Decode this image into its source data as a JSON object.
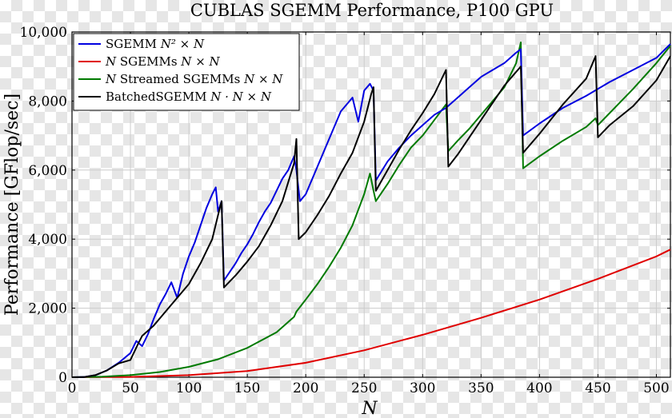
{
  "chart_data": {
    "type": "line",
    "title": "CUBLAS SGEMM Performance, P100 GPU",
    "xlabel": "N",
    "ylabel": "Performance [GFlop/sec]",
    "xlim": [
      0,
      512
    ],
    "ylim": [
      0,
      10000
    ],
    "grid": true,
    "legend_position": "top-left",
    "x_ticks": [
      0,
      50,
      100,
      150,
      200,
      250,
      300,
      350,
      400,
      450,
      500
    ],
    "y_ticks": [
      0,
      2000,
      4000,
      6000,
      8000,
      10000
    ],
    "x_tick_labels": [
      "0",
      "50",
      "100",
      "150",
      "200",
      "250",
      "300",
      "350",
      "400",
      "450",
      "500"
    ],
    "y_tick_labels": [
      "0",
      "2,000",
      "4,000",
      "6,000",
      "8,000",
      "10,000"
    ],
    "series": [
      {
        "name": "SGEMM N² × N",
        "color": "#0000e0",
        "points": [
          [
            0,
            0
          ],
          [
            10,
            5
          ],
          [
            20,
            60
          ],
          [
            30,
            200
          ],
          [
            40,
            420
          ],
          [
            50,
            700
          ],
          [
            55,
            1050
          ],
          [
            60,
            900
          ],
          [
            65,
            1250
          ],
          [
            70,
            1700
          ],
          [
            75,
            2100
          ],
          [
            80,
            2400
          ],
          [
            85,
            2750
          ],
          [
            90,
            2300
          ],
          [
            95,
            3000
          ],
          [
            100,
            3500
          ],
          [
            105,
            3900
          ],
          [
            110,
            4400
          ],
          [
            115,
            4900
          ],
          [
            120,
            5300
          ],
          [
            123,
            5500
          ],
          [
            125,
            4800
          ],
          [
            128,
            5100
          ],
          [
            130,
            2800
          ],
          [
            135,
            3050
          ],
          [
            140,
            3300
          ],
          [
            145,
            3600
          ],
          [
            150,
            3850
          ],
          [
            155,
            4150
          ],
          [
            160,
            4500
          ],
          [
            165,
            4800
          ],
          [
            170,
            5050
          ],
          [
            175,
            5400
          ],
          [
            180,
            5750
          ],
          [
            185,
            6000
          ],
          [
            190,
            6400
          ],
          [
            192,
            6000
          ],
          [
            195,
            5100
          ],
          [
            200,
            5300
          ],
          [
            210,
            6100
          ],
          [
            220,
            6900
          ],
          [
            230,
            7700
          ],
          [
            240,
            8100
          ],
          [
            245,
            7400
          ],
          [
            250,
            8300
          ],
          [
            255,
            8500
          ],
          [
            258,
            8300
          ],
          [
            260,
            5700
          ],
          [
            270,
            6250
          ],
          [
            280,
            6650
          ],
          [
            290,
            7000
          ],
          [
            300,
            7300
          ],
          [
            310,
            7600
          ],
          [
            320,
            7800
          ],
          [
            330,
            8100
          ],
          [
            340,
            8400
          ],
          [
            350,
            8700
          ],
          [
            360,
            8900
          ],
          [
            370,
            9100
          ],
          [
            380,
            9400
          ],
          [
            384,
            9500
          ],
          [
            386,
            7000
          ],
          [
            400,
            7350
          ],
          [
            420,
            7800
          ],
          [
            440,
            8150
          ],
          [
            460,
            8550
          ],
          [
            480,
            8900
          ],
          [
            500,
            9250
          ],
          [
            512,
            9650
          ]
        ]
      },
      {
        "name": "N SGEMMs N × N",
        "color": "#e00000",
        "points": [
          [
            0,
            0
          ],
          [
            50,
            10
          ],
          [
            100,
            60
          ],
          [
            150,
            180
          ],
          [
            200,
            420
          ],
          [
            250,
            780
          ],
          [
            300,
            1230
          ],
          [
            350,
            1720
          ],
          [
            400,
            2250
          ],
          [
            450,
            2850
          ],
          [
            500,
            3500
          ],
          [
            512,
            3700
          ]
        ]
      },
      {
        "name": "N Streamed SGEMMs N × N",
        "color": "#007a00",
        "points": [
          [
            0,
            0
          ],
          [
            25,
            15
          ],
          [
            50,
            60
          ],
          [
            75,
            150
          ],
          [
            100,
            300
          ],
          [
            125,
            520
          ],
          [
            150,
            850
          ],
          [
            175,
            1300
          ],
          [
            190,
            1750
          ],
          [
            192,
            1900
          ],
          [
            200,
            2250
          ],
          [
            210,
            2700
          ],
          [
            220,
            3200
          ],
          [
            230,
            3750
          ],
          [
            240,
            4400
          ],
          [
            250,
            5300
          ],
          [
            255,
            5900
          ],
          [
            258,
            5400
          ],
          [
            260,
            5100
          ],
          [
            270,
            5600
          ],
          [
            280,
            6150
          ],
          [
            290,
            6650
          ],
          [
            300,
            7000
          ],
          [
            310,
            7450
          ],
          [
            320,
            7900
          ],
          [
            322,
            6550
          ],
          [
            330,
            6850
          ],
          [
            340,
            7200
          ],
          [
            350,
            7600
          ],
          [
            360,
            8000
          ],
          [
            370,
            8400
          ],
          [
            380,
            9100
          ],
          [
            384,
            9700
          ],
          [
            386,
            6050
          ],
          [
            400,
            6400
          ],
          [
            420,
            6850
          ],
          [
            440,
            7250
          ],
          [
            448,
            7500
          ],
          [
            450,
            7300
          ],
          [
            460,
            7650
          ],
          [
            480,
            8350
          ],
          [
            500,
            9100
          ],
          [
            512,
            9600
          ]
        ]
      },
      {
        "name": "BatchedSGEMM N · N × N",
        "color": "#000000",
        "points": [
          [
            0,
            0
          ],
          [
            10,
            5
          ],
          [
            20,
            60
          ],
          [
            30,
            200
          ],
          [
            40,
            400
          ],
          [
            50,
            500
          ],
          [
            57,
            1000
          ],
          [
            60,
            1200
          ],
          [
            70,
            1500
          ],
          [
            80,
            1900
          ],
          [
            90,
            2300
          ],
          [
            100,
            2700
          ],
          [
            110,
            3300
          ],
          [
            120,
            4000
          ],
          [
            125,
            4700
          ],
          [
            128,
            5100
          ],
          [
            130,
            2600
          ],
          [
            140,
            2950
          ],
          [
            150,
            3350
          ],
          [
            160,
            3800
          ],
          [
            170,
            4400
          ],
          [
            180,
            5100
          ],
          [
            190,
            6200
          ],
          [
            192,
            6900
          ],
          [
            194,
            4000
          ],
          [
            200,
            4200
          ],
          [
            210,
            4700
          ],
          [
            220,
            5250
          ],
          [
            230,
            5900
          ],
          [
            240,
            6500
          ],
          [
            250,
            7400
          ],
          [
            256,
            8200
          ],
          [
            258,
            8400
          ],
          [
            260,
            5400
          ],
          [
            270,
            6000
          ],
          [
            280,
            6600
          ],
          [
            290,
            7150
          ],
          [
            300,
            7650
          ],
          [
            310,
            8200
          ],
          [
            320,
            8900
          ],
          [
            322,
            6100
          ],
          [
            330,
            6450
          ],
          [
            340,
            6950
          ],
          [
            350,
            7450
          ],
          [
            360,
            7950
          ],
          [
            370,
            8450
          ],
          [
            384,
            9000
          ],
          [
            386,
            6500
          ],
          [
            400,
            7050
          ],
          [
            420,
            7900
          ],
          [
            440,
            8650
          ],
          [
            448,
            9300
          ],
          [
            450,
            6950
          ],
          [
            460,
            7300
          ],
          [
            480,
            7850
          ],
          [
            500,
            8600
          ],
          [
            512,
            9300
          ]
        ]
      }
    ]
  },
  "legend": [
    {
      "label": "SGEMM ",
      "math": "N² × N",
      "color": "#0000e0"
    },
    {
      "label": "",
      "math": "N",
      "suffix": " SGEMMs ",
      "math2": "N × N",
      "color": "#e00000"
    },
    {
      "label": "",
      "math": "N",
      "suffix": " Streamed SGEMMs ",
      "math2": "N × N",
      "color": "#007a00"
    },
    {
      "label": "BatchedSGEMM ",
      "math": "N · N × N",
      "color": "#000000"
    }
  ]
}
